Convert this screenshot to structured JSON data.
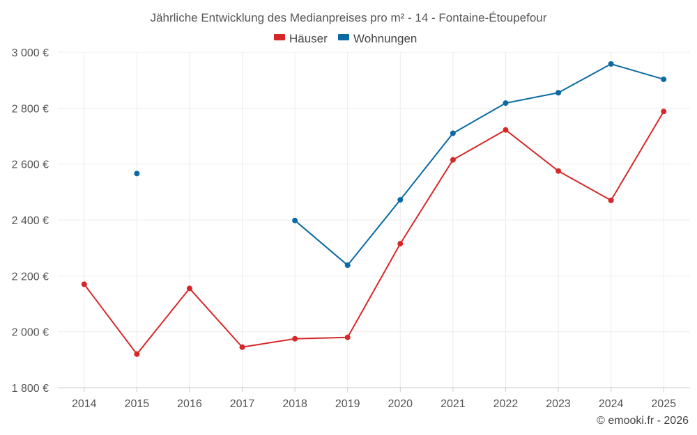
{
  "chart_data": {
    "type": "line",
    "title": "Jährliche Entwicklung des Medianpreises pro m² - 14 - Fontaine-Étoupefour",
    "xlabel": "",
    "ylabel": "",
    "categories": [
      "2014",
      "2015",
      "2016",
      "2017",
      "2018",
      "2019",
      "2020",
      "2021",
      "2022",
      "2023",
      "2024",
      "2025"
    ],
    "ylim": [
      1800,
      3000
    ],
    "yticks": [
      1800,
      2000,
      2200,
      2400,
      2600,
      2800,
      3000
    ],
    "ytick_labels": [
      "1 800 €",
      "2 000 €",
      "2 200 €",
      "2 400 €",
      "2 600 €",
      "2 800 €",
      "3 000 €"
    ],
    "grid": true,
    "legend_position": "top-center",
    "series": [
      {
        "name": "Häuser",
        "color": "#d62728",
        "values": [
          2170,
          1920,
          2155,
          1945,
          1975,
          1980,
          2315,
          2615,
          2722,
          2575,
          2470,
          2788
        ]
      },
      {
        "name": "Wohnungen",
        "color": "#0b6aa3",
        "values": [
          null,
          2566,
          null,
          null,
          2398,
          2238,
          2472,
          2710,
          2818,
          2855,
          2958,
          2903
        ]
      }
    ]
  },
  "credit": "© emooki.fr - 2026"
}
